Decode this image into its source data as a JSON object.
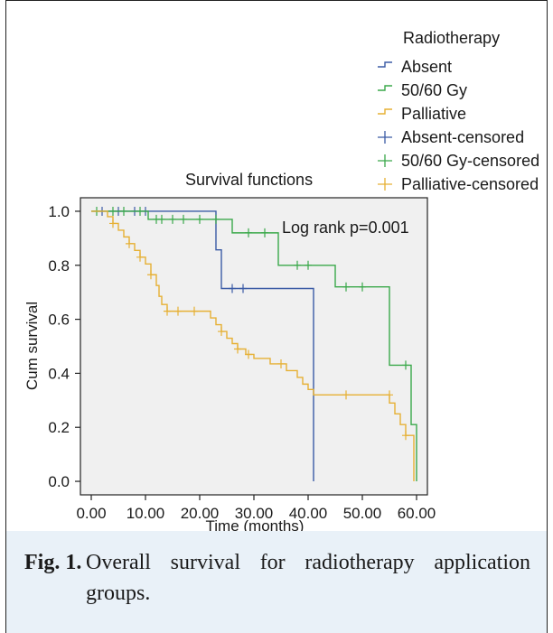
{
  "chart_data": {
    "type": "line",
    "title": "Survival functions",
    "xlabel": "Time (months)",
    "ylabel": "Cum survival",
    "xlim": [
      -2,
      62
    ],
    "ylim": [
      -0.05,
      1.05
    ],
    "xticks": [
      "0.00",
      "10.00",
      "20.00",
      "30.00",
      "40.00",
      "50.00",
      "60.00"
    ],
    "xtick_values": [
      0,
      10,
      20,
      30,
      40,
      50,
      60
    ],
    "yticks": [
      "0.0",
      "0.2",
      "0.4",
      "0.6",
      "0.8",
      "1.0"
    ],
    "ytick_values": [
      0,
      0.2,
      0.4,
      0.6,
      0.8,
      1.0
    ],
    "grid": false,
    "annotation": "Log rank p=0.001",
    "legend": {
      "title": "Radiotherapy",
      "placement": "top-right",
      "entries": [
        {
          "label": "Absent",
          "kind": "line",
          "color": "#3b5ba5"
        },
        {
          "label": "50/60 Gy",
          "kind": "line",
          "color": "#3aa84a"
        },
        {
          "label": "Palliative",
          "kind": "line",
          "color": "#e6b034"
        },
        {
          "label": "Absent-censored",
          "kind": "cross",
          "color": "#3b5ba5"
        },
        {
          "label": "50/60 Gy-censored",
          "kind": "cross",
          "color": "#3aa84a"
        },
        {
          "label": "Palliative-censored",
          "kind": "cross",
          "color": "#e6b034"
        }
      ]
    },
    "series": [
      {
        "name": "Absent",
        "color": "#3b5ba5",
        "steps": [
          [
            0,
            1.0
          ],
          [
            23,
            0.857
          ],
          [
            24,
            0.714
          ],
          [
            41,
            0.0
          ]
        ],
        "censored": [
          [
            2,
            1.0
          ],
          [
            5,
            1.0
          ],
          [
            8,
            1.0
          ],
          [
            10,
            1.0
          ],
          [
            26,
            0.714
          ],
          [
            28,
            0.714
          ]
        ]
      },
      {
        "name": "50/60 Gy",
        "color": "#3aa84a",
        "steps": [
          [
            0,
            1.0
          ],
          [
            10.5,
            0.97
          ],
          [
            26,
            0.92
          ],
          [
            34.5,
            0.8
          ],
          [
            45,
            0.72
          ],
          [
            55,
            0.43
          ],
          [
            59,
            0.21
          ],
          [
            60,
            0.0
          ]
        ],
        "censored": [
          [
            1,
            1.0
          ],
          [
            4,
            1.0
          ],
          [
            6,
            1.0
          ],
          [
            9,
            1.0
          ],
          [
            12,
            0.97
          ],
          [
            13,
            0.97
          ],
          [
            15,
            0.97
          ],
          [
            17,
            0.97
          ],
          [
            20,
            0.97
          ],
          [
            23,
            0.97
          ],
          [
            29,
            0.92
          ],
          [
            32,
            0.92
          ],
          [
            38,
            0.8
          ],
          [
            40,
            0.8
          ],
          [
            47,
            0.72
          ],
          [
            50,
            0.72
          ],
          [
            58,
            0.43
          ]
        ]
      },
      {
        "name": "Palliative",
        "color": "#e6b034",
        "steps": [
          [
            0,
            1.0
          ],
          [
            3,
            0.98
          ],
          [
            4,
            0.955
          ],
          [
            5,
            0.93
          ],
          [
            6,
            0.905
          ],
          [
            7,
            0.88
          ],
          [
            8,
            0.855
          ],
          [
            9,
            0.83
          ],
          [
            10,
            0.805
          ],
          [
            11,
            0.765
          ],
          [
            12,
            0.725
          ],
          [
            12.5,
            0.685
          ],
          [
            13,
            0.655
          ],
          [
            14,
            0.63
          ],
          [
            22,
            0.605
          ],
          [
            23,
            0.58
          ],
          [
            24,
            0.555
          ],
          [
            25,
            0.53
          ],
          [
            26,
            0.51
          ],
          [
            27,
            0.49
          ],
          [
            28.5,
            0.47
          ],
          [
            30,
            0.455
          ],
          [
            33,
            0.435
          ],
          [
            36,
            0.41
          ],
          [
            38,
            0.385
          ],
          [
            39,
            0.36
          ],
          [
            40,
            0.34
          ],
          [
            41,
            0.32
          ],
          [
            55,
            0.29
          ],
          [
            56,
            0.25
          ],
          [
            57,
            0.21
          ],
          [
            58,
            0.17
          ],
          [
            59.5,
            0.0
          ]
        ],
        "censored": [
          [
            4,
            0.955
          ],
          [
            7,
            0.88
          ],
          [
            9,
            0.83
          ],
          [
            11,
            0.765
          ],
          [
            14,
            0.63
          ],
          [
            16,
            0.63
          ],
          [
            19,
            0.63
          ],
          [
            24,
            0.555
          ],
          [
            27,
            0.49
          ],
          [
            29,
            0.47
          ],
          [
            35,
            0.435
          ],
          [
            47,
            0.32
          ],
          [
            55,
            0.32
          ],
          [
            58,
            0.17
          ]
        ]
      }
    ]
  },
  "caption": {
    "label": "Fig. 1.",
    "text": "Overall survival for radiotherapy application groups."
  }
}
